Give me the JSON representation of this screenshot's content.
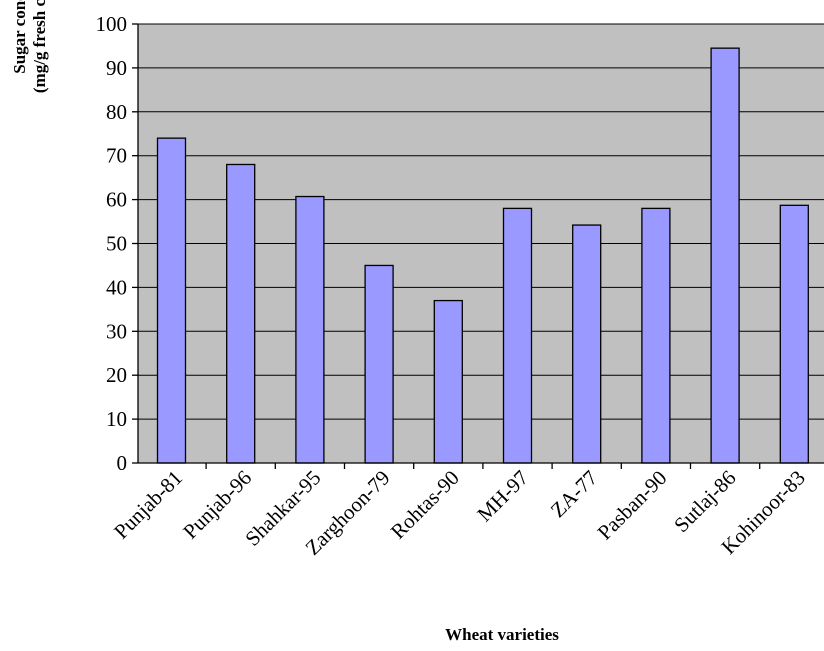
{
  "chart_data": {
    "type": "bar",
    "title": "",
    "xlabel": "Wheat varieties",
    "ylabel_line1": "Sugar concentration",
    "ylabel_line2": "(mg/g fresh callus weight)",
    "ylim": [
      0,
      100
    ],
    "yticks": [
      0,
      10,
      20,
      30,
      40,
      50,
      60,
      70,
      80,
      90,
      100
    ],
    "grid": true,
    "legend": "none",
    "categories": [
      "Punjab-81",
      "Punjab-96",
      "Shahkar-95",
      "Zarghoon-79",
      "Rohtas-90",
      "MH-97",
      "ZA-77",
      "Pasban-90",
      "Sutlaj-86",
      "Kohinoor-83"
    ],
    "series": [
      {
        "values": [
          74,
          68,
          60.7,
          45,
          37,
          58,
          54.2,
          58,
          94.5,
          58.7
        ]
      }
    ],
    "colors": {
      "plot_background": "#c0c0c0",
      "bar_fill": "#9999ff",
      "bar_stroke": "#000000",
      "gridline": "#000000"
    }
  }
}
